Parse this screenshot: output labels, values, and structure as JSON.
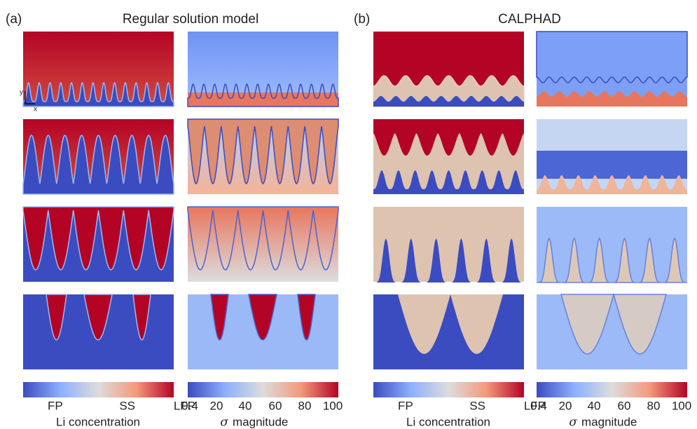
{
  "panel_a": {
    "label": "(a)",
    "title": "Regular solution model"
  },
  "panel_b": {
    "label": "(b)",
    "title": "CALPHAD"
  },
  "axes_hint": {
    "y": "y",
    "x": "x"
  },
  "li_colorbar": {
    "ticks": [
      "FP",
      "SS",
      "LFP"
    ],
    "label": "Li concentration"
  },
  "sigma_colorbar": {
    "ticks": [
      "0.4",
      "20",
      "40",
      "60",
      "80",
      "100"
    ],
    "symbol": "σ",
    "label": "magnitude"
  }
}
